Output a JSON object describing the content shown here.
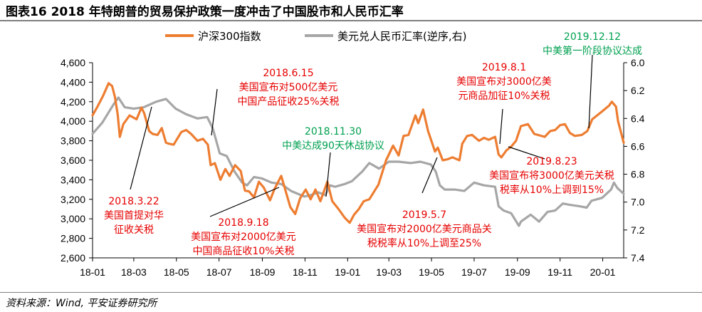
{
  "header": {
    "title": "图表16    2018 年特朗普的贸易保护政策一度冲击了中国股市和人民币汇率"
  },
  "footer": {
    "source": "资料来源：Wind, 平安证券研究所"
  },
  "colors": {
    "csi300": "#ED7D31",
    "fx": "#A6A6A6",
    "red_note": "#E60000",
    "green_note": "#00A050"
  },
  "chart_data": {
    "type": "line",
    "x_tick_labels": [
      "18-01",
      "18-03",
      "18-05",
      "18-07",
      "18-09",
      "18-11",
      "19-01",
      "19-03",
      "19-05",
      "19-07",
      "19-09",
      "19-11",
      "20-01"
    ],
    "x_range": [
      "2018-01-01",
      "2020-01-31"
    ],
    "y_left": {
      "ticks": [
        "4,600",
        "4,400",
        "4,200",
        "4,000",
        "3,800",
        "3,600",
        "3,400",
        "3,200",
        "3,000",
        "2,800",
        "2,600"
      ],
      "range": [
        2600,
        4600
      ]
    },
    "y_right": {
      "ticks": [
        "6.0",
        "6.2",
        "6.4",
        "6.6",
        "6.8",
        "7.0",
        "7.2",
        "7.4"
      ],
      "range": [
        6.0,
        7.4
      ],
      "inverted": true
    },
    "legend": [
      "沪深300指数",
      "美元兑人民币汇率(逆序,右)"
    ],
    "series": [
      {
        "name": "沪深300指数",
        "axis": "left",
        "points": [
          [
            "2018-01-01",
            4060
          ],
          [
            "2018-01-08",
            4150
          ],
          [
            "2018-01-16",
            4260
          ],
          [
            "2018-01-24",
            4390
          ],
          [
            "2018-01-29",
            4360
          ],
          [
            "2018-02-02",
            4250
          ],
          [
            "2018-02-06",
            4070
          ],
          [
            "2018-02-09",
            3840
          ],
          [
            "2018-02-14",
            3970
          ],
          [
            "2018-02-23",
            4060
          ],
          [
            "2018-03-05",
            4020
          ],
          [
            "2018-03-12",
            4140
          ],
          [
            "2018-03-16",
            4080
          ],
          [
            "2018-03-23",
            3900
          ],
          [
            "2018-03-28",
            3870
          ],
          [
            "2018-04-04",
            3860
          ],
          [
            "2018-04-10",
            3930
          ],
          [
            "2018-04-16",
            3780
          ],
          [
            "2018-04-20",
            3770
          ],
          [
            "2018-04-27",
            3760
          ],
          [
            "2018-05-08",
            3890
          ],
          [
            "2018-05-15",
            3910
          ],
          [
            "2018-05-22",
            3870
          ],
          [
            "2018-05-31",
            3800
          ],
          [
            "2018-06-08",
            3820
          ],
          [
            "2018-06-15",
            3760
          ],
          [
            "2018-06-19",
            3550
          ],
          [
            "2018-06-25",
            3570
          ],
          [
            "2018-07-03",
            3400
          ],
          [
            "2018-07-10",
            3510
          ],
          [
            "2018-07-16",
            3440
          ],
          [
            "2018-07-24",
            3550
          ],
          [
            "2018-08-01",
            3490
          ],
          [
            "2018-08-07",
            3290
          ],
          [
            "2018-08-13",
            3280
          ],
          [
            "2018-08-20",
            3220
          ],
          [
            "2018-08-27",
            3380
          ],
          [
            "2018-09-03",
            3320
          ],
          [
            "2018-09-12",
            3190
          ],
          [
            "2018-09-18",
            3300
          ],
          [
            "2018-09-28",
            3440
          ],
          [
            "2018-10-11",
            3120
          ],
          [
            "2018-10-18",
            3050
          ],
          [
            "2018-10-25",
            3210
          ],
          [
            "2018-11-02",
            3300
          ],
          [
            "2018-11-09",
            3200
          ],
          [
            "2018-11-16",
            3300
          ],
          [
            "2018-11-23",
            3180
          ],
          [
            "2018-12-03",
            3380
          ],
          [
            "2018-12-10",
            3180
          ],
          [
            "2018-12-19",
            3100
          ],
          [
            "2018-12-28",
            3010
          ],
          [
            "2019-01-04",
            2960
          ],
          [
            "2019-01-10",
            3040
          ],
          [
            "2019-01-17",
            3100
          ],
          [
            "2019-01-24",
            3180
          ],
          [
            "2019-02-01",
            3200
          ],
          [
            "2019-02-14",
            3350
          ],
          [
            "2019-02-25",
            3600
          ],
          [
            "2019-03-07",
            3750
          ],
          [
            "2019-03-15",
            3650
          ],
          [
            "2019-03-22",
            3850
          ],
          [
            "2019-03-29",
            3860
          ],
          [
            "2019-04-08",
            4060
          ],
          [
            "2019-04-12",
            3980
          ],
          [
            "2019-04-19",
            4120
          ],
          [
            "2019-04-26",
            3900
          ],
          [
            "2019-05-06",
            3690
          ],
          [
            "2019-05-10",
            3730
          ],
          [
            "2019-05-17",
            3600
          ],
          [
            "2019-05-24",
            3610
          ],
          [
            "2019-05-31",
            3630
          ],
          [
            "2019-06-10",
            3600
          ],
          [
            "2019-06-14",
            3770
          ],
          [
            "2019-06-21",
            3850
          ],
          [
            "2019-06-28",
            3860
          ],
          [
            "2019-07-08",
            3800
          ],
          [
            "2019-07-15",
            3830
          ],
          [
            "2019-07-22",
            3810
          ],
          [
            "2019-07-31",
            3840
          ],
          [
            "2019-08-05",
            3660
          ],
          [
            "2019-08-09",
            3630
          ],
          [
            "2019-08-16",
            3700
          ],
          [
            "2019-08-23",
            3740
          ],
          [
            "2019-08-30",
            3800
          ],
          [
            "2019-09-06",
            3950
          ],
          [
            "2019-09-16",
            3970
          ],
          [
            "2019-09-25",
            3870
          ],
          [
            "2019-10-10",
            3840
          ],
          [
            "2019-10-18",
            3900
          ],
          [
            "2019-10-25",
            3910
          ],
          [
            "2019-11-01",
            3960
          ],
          [
            "2019-11-08",
            3970
          ],
          [
            "2019-11-15",
            3880
          ],
          [
            "2019-11-22",
            3850
          ],
          [
            "2019-12-02",
            3860
          ],
          [
            "2019-12-10",
            3900
          ],
          [
            "2019-12-17",
            4020
          ],
          [
            "2019-12-31",
            4100
          ],
          [
            "2020-01-10",
            4160
          ],
          [
            "2020-01-14",
            4200
          ],
          [
            "2020-01-20",
            4150
          ],
          [
            "2020-01-23",
            4000
          ],
          [
            "2020-01-31",
            3780
          ]
        ]
      },
      {
        "name": "美元兑人民币汇率(逆序,右)",
        "axis": "right",
        "points": [
          [
            "2018-01-01",
            6.51
          ],
          [
            "2018-01-15",
            6.43
          ],
          [
            "2018-01-31",
            6.3
          ],
          [
            "2018-02-07",
            6.25
          ],
          [
            "2018-02-16",
            6.32
          ],
          [
            "2018-03-01",
            6.33
          ],
          [
            "2018-03-15",
            6.32
          ],
          [
            "2018-04-02",
            6.28
          ],
          [
            "2018-04-16",
            6.26
          ],
          [
            "2018-04-30",
            6.33
          ],
          [
            "2018-05-15",
            6.37
          ],
          [
            "2018-05-31",
            6.4
          ],
          [
            "2018-06-14",
            6.39
          ],
          [
            "2018-06-22",
            6.47
          ],
          [
            "2018-07-02",
            6.65
          ],
          [
            "2018-07-12",
            6.67
          ],
          [
            "2018-07-23",
            6.78
          ],
          [
            "2018-08-03",
            6.86
          ],
          [
            "2018-08-10",
            6.88
          ],
          [
            "2018-08-20",
            6.82
          ],
          [
            "2018-08-31",
            6.83
          ],
          [
            "2018-09-14",
            6.86
          ],
          [
            "2018-09-28",
            6.87
          ],
          [
            "2018-10-12",
            6.92
          ],
          [
            "2018-10-31",
            6.96
          ],
          [
            "2018-11-09",
            6.95
          ],
          [
            "2018-11-20",
            6.93
          ],
          [
            "2018-11-30",
            6.95
          ],
          [
            "2018-12-07",
            6.88
          ],
          [
            "2018-12-14",
            6.89
          ],
          [
            "2018-12-28",
            6.87
          ],
          [
            "2019-01-07",
            6.85
          ],
          [
            "2019-01-22",
            6.78
          ],
          [
            "2019-02-01",
            6.72
          ],
          [
            "2019-02-15",
            6.76
          ],
          [
            "2019-03-01",
            6.71
          ],
          [
            "2019-03-15",
            6.71
          ],
          [
            "2019-04-01",
            6.72
          ],
          [
            "2019-04-15",
            6.71
          ],
          [
            "2019-04-30",
            6.73
          ],
          [
            "2019-05-07",
            6.78
          ],
          [
            "2019-05-13",
            6.88
          ],
          [
            "2019-05-20",
            6.91
          ],
          [
            "2019-06-03",
            6.91
          ],
          [
            "2019-06-17",
            6.92
          ],
          [
            "2019-07-01",
            6.86
          ],
          [
            "2019-07-15",
            6.88
          ],
          [
            "2019-07-31",
            6.89
          ],
          [
            "2019-08-05",
            7.03
          ],
          [
            "2019-08-12",
            7.06
          ],
          [
            "2019-08-23",
            7.08
          ],
          [
            "2019-09-03",
            7.17
          ],
          [
            "2019-09-06",
            7.14
          ],
          [
            "2019-09-20",
            7.09
          ],
          [
            "2019-10-02",
            7.14
          ],
          [
            "2019-10-14",
            7.07
          ],
          [
            "2019-10-25",
            7.06
          ],
          [
            "2019-11-05",
            7.01
          ],
          [
            "2019-11-15",
            7.02
          ],
          [
            "2019-11-29",
            7.03
          ],
          [
            "2019-12-09",
            7.04
          ],
          [
            "2019-12-16",
            6.99
          ],
          [
            "2019-12-31",
            6.97
          ],
          [
            "2020-01-13",
            6.91
          ],
          [
            "2020-01-17",
            6.86
          ],
          [
            "2020-01-22",
            6.9
          ],
          [
            "2020-01-31",
            6.94
          ]
        ]
      }
    ],
    "annotations": [
      {
        "color": "red",
        "lines": [
          "2018.3.22",
          "美国首提对华",
          "征收关税"
        ]
      },
      {
        "color": "red",
        "lines": [
          "2018.6.15",
          "美国宣布对500亿美元",
          "中国产品征收25%关税"
        ]
      },
      {
        "color": "red",
        "lines": [
          "2018.9.18",
          "美国宣布对2000亿美元",
          "中国商品征收10%关税"
        ]
      },
      {
        "color": "green",
        "lines": [
          "2018.11.30",
          "中美达成90天休战协议"
        ]
      },
      {
        "color": "red",
        "lines": [
          "2019.5.7",
          "美国宣布对2000亿美元商品关",
          "税税率从10%上调至25%"
        ]
      },
      {
        "color": "red",
        "lines": [
          "2019.8.1",
          "美国宣布对3000亿美",
          "元商品加征10%关税"
        ]
      },
      {
        "color": "red",
        "lines": [
          "2019.8.23",
          "美国宣布将3000亿美元关税",
          "税率从10%上调到15%"
        ]
      },
      {
        "color": "green",
        "lines": [
          "2019.12.12",
          "中美第一阶段协议达成"
        ]
      }
    ]
  }
}
